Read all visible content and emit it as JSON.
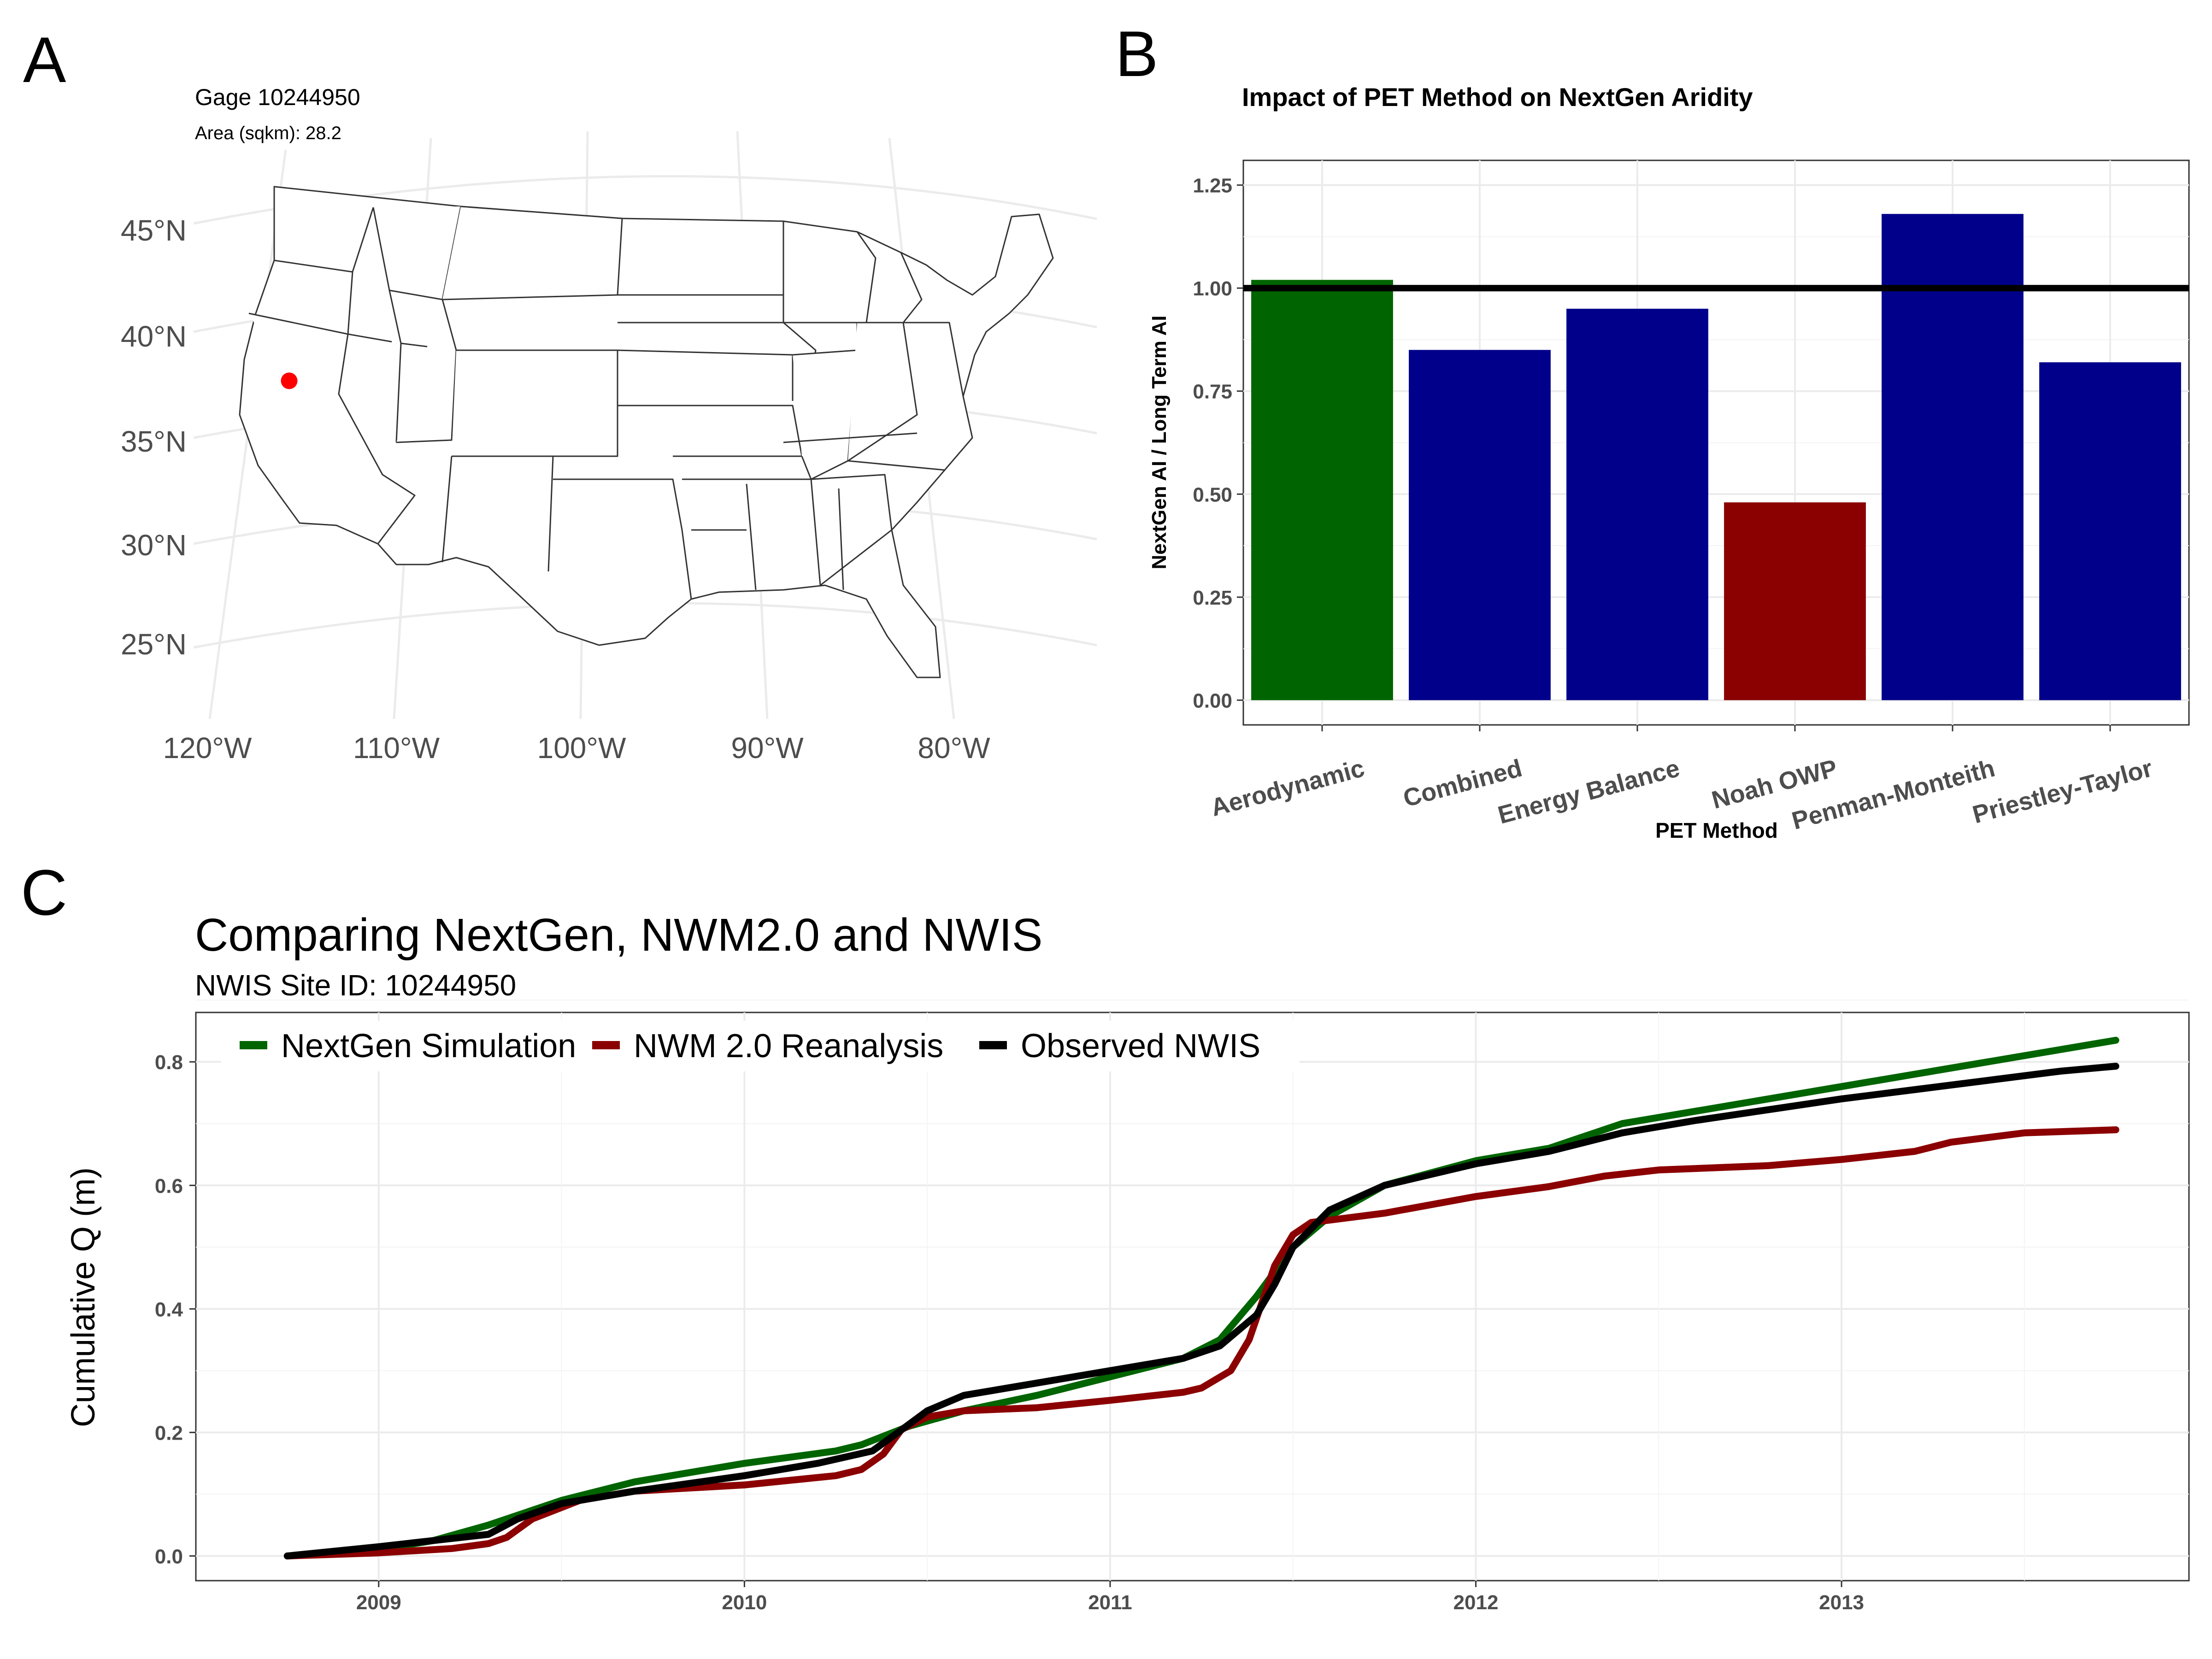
{
  "figure": {
    "panel_labels": [
      "A",
      "B",
      "C"
    ]
  },
  "map": {
    "title": "Gage 10244950",
    "subtitle": "Area (sqkm): 28.2",
    "lat_labels": [
      "45°N",
      "40°N",
      "35°N",
      "30°N",
      "25°N"
    ],
    "lon_labels": [
      "120°W",
      "110°W",
      "100°W",
      "90°W",
      "80°W"
    ],
    "gage_point": {
      "lat": 38.9,
      "lon": -114.3
    },
    "colors": {
      "gage": "#ff0000",
      "state_border": "#333333"
    }
  },
  "chart_data": [
    {
      "type": "bar",
      "title": "Impact of PET Method on NextGen Aridity",
      "xlabel": "PET Method",
      "ylabel": "NextGen AI / Long Term AI",
      "categories": [
        "Aerodynamic",
        "Combined",
        "Energy Balance",
        "Noah OWP",
        "Penman-Monteith",
        "Priestley-Taylor"
      ],
      "values": [
        1.02,
        0.85,
        0.95,
        0.48,
        1.18,
        0.82
      ],
      "colors": [
        "#006400",
        "#00008b",
        "#00008b",
        "#8b0000",
        "#00008b",
        "#00008b"
      ],
      "reference_line": 1.0,
      "yticks": [
        "0.00",
        "0.25",
        "0.50",
        "0.75",
        "1.00",
        "1.25"
      ],
      "ylim": [
        -0.06,
        1.31
      ],
      "grid": true
    },
    {
      "type": "line",
      "title": "Comparing NextGen, NWM2.0 and NWIS",
      "subtitle": "NWIS Site ID: 10244950",
      "xlabel": "",
      "ylabel": "Cumulative Q (m)",
      "xticks": [
        "2009",
        "2010",
        "2011",
        "2012",
        "2013"
      ],
      "yticks": [
        "0.0",
        "0.2",
        "0.4",
        "0.6",
        "0.8"
      ],
      "xlim": [
        2008.5,
        2013.95
      ],
      "ylim": [
        -0.04,
        0.88
      ],
      "legend_position": "top-left",
      "grid": true,
      "series": [
        {
          "name": "NextGen Simulation",
          "color": "#006400",
          "x": [
            2008.75,
            2009.0,
            2009.15,
            2009.3,
            2009.5,
            2009.7,
            2010.0,
            2010.25,
            2010.32,
            2010.45,
            2010.6,
            2010.8,
            2011.0,
            2011.2,
            2011.3,
            2011.4,
            2011.5,
            2011.6,
            2011.75,
            2012.0,
            2012.2,
            2012.4,
            2012.6,
            2013.0,
            2013.2,
            2013.4,
            2013.6,
            2013.75
          ],
          "y": [
            0.0,
            0.01,
            0.025,
            0.05,
            0.09,
            0.12,
            0.15,
            0.17,
            0.18,
            0.21,
            0.235,
            0.26,
            0.29,
            0.32,
            0.35,
            0.42,
            0.5,
            0.55,
            0.6,
            0.64,
            0.66,
            0.7,
            0.72,
            0.76,
            0.78,
            0.8,
            0.82,
            0.835
          ]
        },
        {
          "name": "NWM 2.0 Reanalysis",
          "color": "#8b0000",
          "x": [
            2008.75,
            2009.0,
            2009.2,
            2009.3,
            2009.35,
            2009.42,
            2009.55,
            2009.7,
            2010.0,
            2010.25,
            2010.32,
            2010.38,
            2010.43,
            2010.5,
            2010.6,
            2010.8,
            2011.0,
            2011.2,
            2011.25,
            2011.33,
            2011.38,
            2011.45,
            2011.5,
            2011.55,
            2011.75,
            2012.0,
            2012.2,
            2012.35,
            2012.5,
            2012.8,
            2013.0,
            2013.2,
            2013.3,
            2013.5,
            2013.75
          ],
          "y": [
            0.0,
            0.005,
            0.012,
            0.02,
            0.03,
            0.06,
            0.09,
            0.105,
            0.115,
            0.13,
            0.14,
            0.165,
            0.205,
            0.225,
            0.235,
            0.24,
            0.252,
            0.265,
            0.272,
            0.3,
            0.35,
            0.47,
            0.52,
            0.54,
            0.555,
            0.582,
            0.598,
            0.615,
            0.625,
            0.632,
            0.642,
            0.655,
            0.67,
            0.685,
            0.69
          ]
        },
        {
          "name": "Observed NWIS",
          "color": "#000000",
          "x": [
            2008.75,
            2009.0,
            2009.15,
            2009.3,
            2009.38,
            2009.5,
            2009.7,
            2010.0,
            2010.2,
            2010.35,
            2010.42,
            2010.5,
            2010.6,
            2010.8,
            2011.0,
            2011.2,
            2011.3,
            2011.4,
            2011.45,
            2011.5,
            2011.6,
            2011.75,
            2012.0,
            2012.2,
            2012.4,
            2012.6,
            2013.0,
            2013.2,
            2013.4,
            2013.6,
            2013.75
          ],
          "y": [
            0.0,
            0.015,
            0.025,
            0.035,
            0.06,
            0.085,
            0.105,
            0.13,
            0.15,
            0.17,
            0.2,
            0.235,
            0.26,
            0.28,
            0.3,
            0.32,
            0.34,
            0.39,
            0.44,
            0.5,
            0.56,
            0.6,
            0.635,
            0.655,
            0.685,
            0.705,
            0.74,
            0.755,
            0.77,
            0.785,
            0.793
          ]
        }
      ]
    }
  ]
}
